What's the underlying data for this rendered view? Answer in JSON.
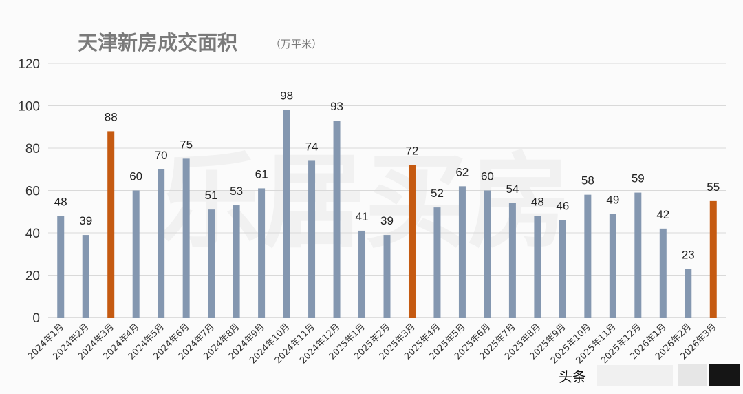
{
  "chart_data": {
    "type": "bar",
    "title": "天津新房成交面积",
    "unit": "（万平米）",
    "categories": [
      "2024年1月",
      "2024年2月",
      "2024年3月",
      "2024年4月",
      "2024年5月",
      "2024年6月",
      "2024年7月",
      "2024年8月",
      "2024年9月",
      "2024年10月",
      "2024年11月",
      "2024年12月",
      "2025年1月",
      "2025年2月",
      "2025年3月",
      "2025年4月",
      "2025年5月",
      "2025年6月",
      "2025年7月",
      "2025年8月",
      "2025年9月",
      "2025年10月",
      "2025年11月",
      "2025年12月",
      "2026年1月",
      "2026年2月",
      "2026年3月"
    ],
    "values": [
      48,
      39,
      88,
      60,
      70,
      75,
      51,
      53,
      61,
      98,
      74,
      93,
      41,
      39,
      72,
      52,
      62,
      60,
      54,
      48,
      46,
      58,
      49,
      59,
      42,
      23,
      55
    ],
    "highlight_indices": [
      2,
      14,
      26
    ],
    "ylim": [
      0,
      120
    ],
    "yticks": [
      0,
      20,
      40,
      60,
      80,
      100,
      120
    ],
    "xlabel": "",
    "ylabel": "",
    "grid": true,
    "legend": "none",
    "colors": {
      "bar": "#8497b0",
      "highlight": "#c55a11",
      "grid": "#d9d9d9"
    }
  },
  "watermark": "乐居买房",
  "overlay_text": "头条"
}
